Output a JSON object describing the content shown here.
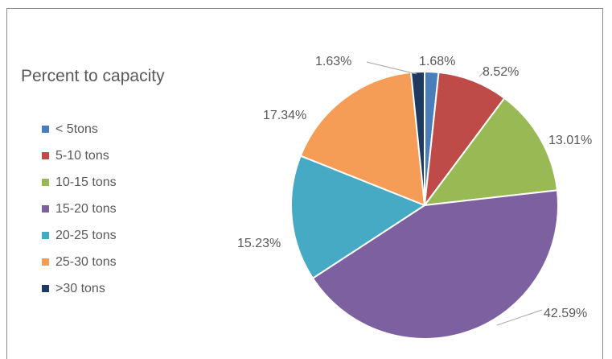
{
  "chart_data": {
    "type": "pie",
    "title": "Percent to capacity",
    "categories": [
      "< 5tons",
      "5-10 tons",
      "10-15 tons",
      "15-20 tons",
      "20-25 tons",
      "25-30 tons",
      ">30 tons"
    ],
    "values": [
      1.68,
      8.52,
      13.01,
      42.59,
      15.23,
      17.34,
      1.63
    ],
    "data_labels": [
      "1.68%",
      "8.52%",
      "13.01%",
      "42.59%",
      "15.23%",
      "17.34%",
      "1.63%"
    ],
    "colors": [
      "#4a7ebb",
      "#be4b48",
      "#98b954",
      "#7d60a0",
      "#46aac5",
      "#f59d56",
      "#1f3a60"
    ],
    "legend_position": "left",
    "start_angle": "top",
    "direction": "clockwise"
  }
}
